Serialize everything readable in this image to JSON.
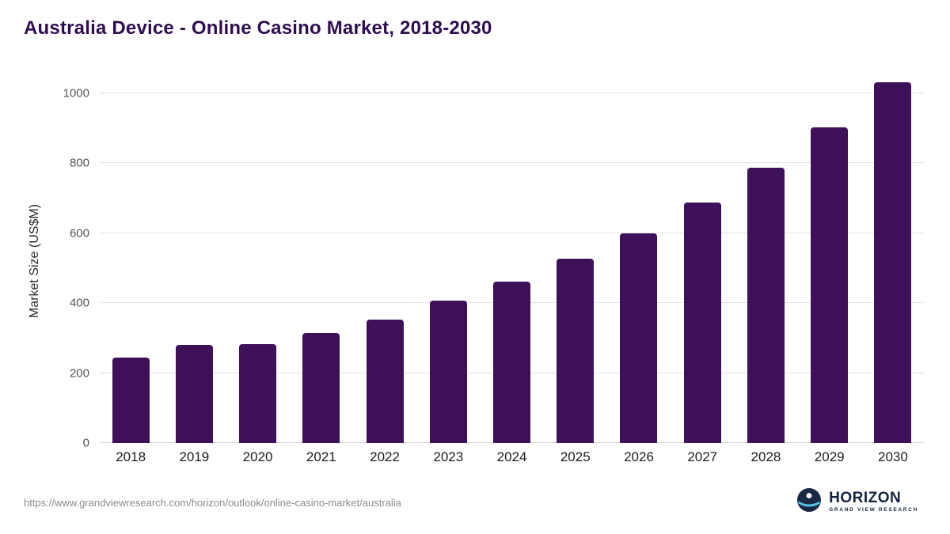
{
  "page": {
    "source_url": "https://www.grandviewresearch.com/horizon/outlook/online-casino-market/australia"
  },
  "logo": {
    "name": "HORIZON",
    "subtitle": "GRAND VIEW RESEARCH"
  },
  "colors": {
    "bar": "#3e1059",
    "title": "#2e0d50",
    "gridline": "#e3e3e6",
    "logo_navy": "#1b2a44",
    "logo_cyan": "#54c8e8"
  },
  "chart_data": {
    "type": "bar",
    "title": "Australia Device - Online Casino Market, 2018-2030",
    "categories": [
      "2018",
      "2019",
      "2020",
      "2021",
      "2022",
      "2023",
      "2024",
      "2025",
      "2026",
      "2027",
      "2028",
      "2029",
      "2030"
    ],
    "values": [
      245,
      281,
      283,
      314,
      353,
      406,
      461,
      526,
      600,
      688,
      786,
      901,
      1031
    ],
    "xlabel": "",
    "ylabel": "Market Size (US$M)",
    "ylim": [
      0,
      1040
    ],
    "yticks": [
      0,
      200,
      400,
      600,
      800,
      1000
    ],
    "bar_color": "#3e1059",
    "grid": true,
    "legend": false
  }
}
